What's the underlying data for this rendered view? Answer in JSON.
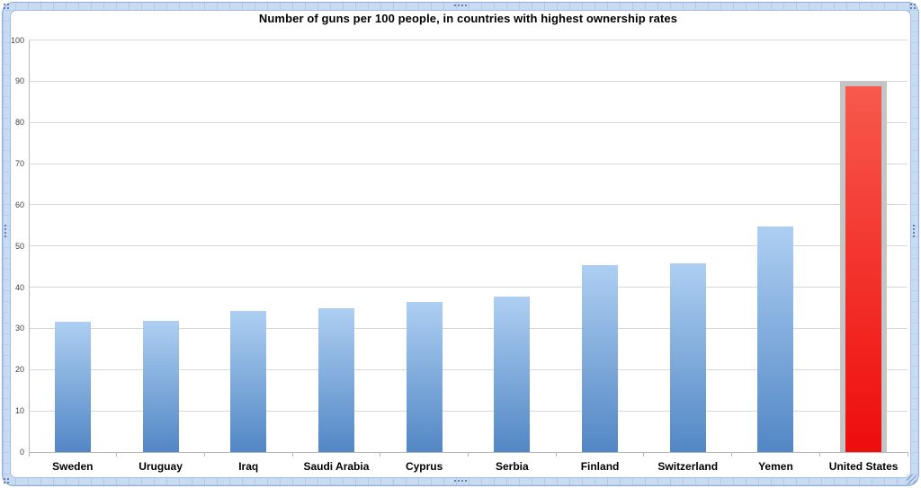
{
  "chart_data": {
    "type": "bar",
    "title": "Number of guns per 100 people, in countries with highest ownership rates",
    "categories": [
      "Sweden",
      "Uruguay",
      "Iraq",
      "Saudi Arabia",
      "Cyprus",
      "Serbia",
      "Finland",
      "Switzerland",
      "Yemen",
      "United States"
    ],
    "values": [
      31.6,
      31.8,
      34.2,
      35.0,
      36.4,
      37.8,
      45.3,
      45.7,
      54.8,
      88.8
    ],
    "xlabel": "",
    "ylabel": "",
    "ylim": [
      0,
      100
    ],
    "ytick_labels": [
      "0",
      "10",
      "20",
      "30",
      "40",
      "50",
      "60",
      "70",
      "80",
      "90",
      "100"
    ],
    "grid": true,
    "legend": "none",
    "highlighted_category": "United States",
    "colors": {
      "bar_gradient_top": "#AECFF2",
      "bar_gradient_bottom": "#5287C5",
      "highlight_gradient_top": "#F7594C",
      "highlight_gradient_bottom": "#EE0D0D",
      "highlight_frame": "#C5C5C5",
      "gridline": "#D7D7D7",
      "axis": "#B7B7B7",
      "tick_label": "#3F3F3F",
      "category_label": "#000000",
      "selection_border": "#C8DBF3"
    }
  }
}
